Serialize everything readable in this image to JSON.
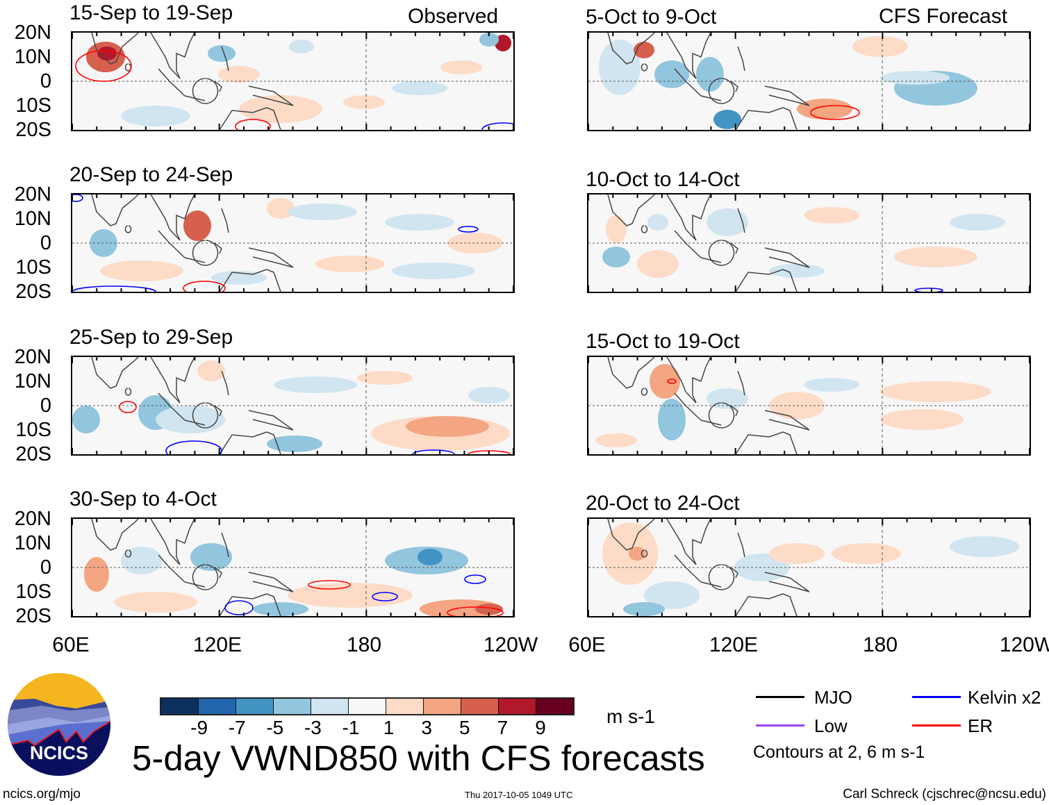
{
  "figure": {
    "title": "5-day VWND850 with CFS forecasts",
    "observed_label": "Observed",
    "forecast_label": "CFS Forecast",
    "units": "m s-1",
    "website": "ncics.org/mjo",
    "timestamp": "Thu 2017-10-05 1049 UTC",
    "author": "Carl Schreck (cjschrec@ncsu.edu)",
    "logo_text": "NCICS"
  },
  "panels_observed": [
    {
      "title": "15-Sep to 19-Sep"
    },
    {
      "title": "20-Sep to 24-Sep"
    },
    {
      "title": "25-Sep to 29-Sep"
    },
    {
      "title": "30-Sep to 4-Oct"
    }
  ],
  "panels_forecast": [
    {
      "title": "5-Oct to 9-Oct"
    },
    {
      "title": "10-Oct to 14-Oct"
    },
    {
      "title": "15-Oct to 19-Oct"
    },
    {
      "title": "20-Oct to 24-Oct"
    }
  ],
  "lat_labels": [
    "20N",
    "10N",
    "0",
    "10S",
    "20S"
  ],
  "lon_labels": [
    "60E",
    "120E",
    "180",
    "120W"
  ],
  "colorbar": {
    "labels": [
      "-9",
      "-7",
      "-5",
      "-3",
      "-1",
      "1",
      "3",
      "5",
      "7",
      "9"
    ],
    "colors": [
      "#0b305e",
      "#2166ac",
      "#4393c3",
      "#92c5de",
      "#d1e5f0",
      "#f7f7f7",
      "#fddbc7",
      "#f4a582",
      "#d6604d",
      "#b2182b",
      "#67001f"
    ]
  },
  "legend": {
    "items": [
      {
        "label": "MJO",
        "color": "#000000"
      },
      {
        "label": "Kelvin x2",
        "color": "#0000ff"
      },
      {
        "label": "Low",
        "color": "#a040f0"
      },
      {
        "label": "ER",
        "color": "#ff0000"
      }
    ],
    "note": "Contours at 2, 6 m s-1"
  }
}
